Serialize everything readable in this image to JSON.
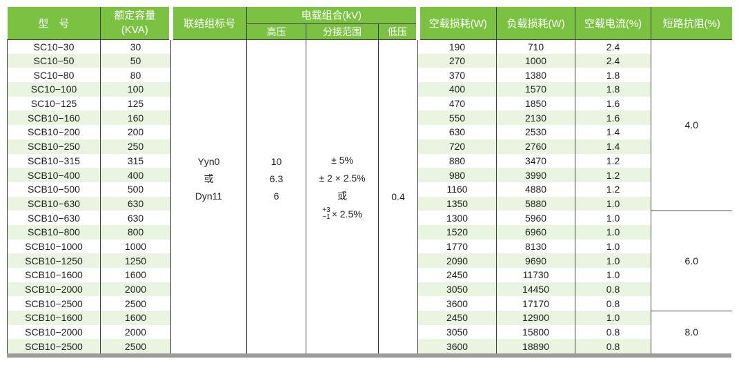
{
  "table": {
    "headers": {
      "model": "型　号",
      "capacity_line1": "额定容量",
      "capacity_line2": "(KVA)",
      "connection": "联结组标号",
      "voltage_group": "电载组合(kV)",
      "hv": "高压",
      "tap_range": "分接范围",
      "lv": "低压",
      "no_load_loss": "空载损耗(W)",
      "load_loss": "负载损耗(W)",
      "no_load_current": "空载电流(%)",
      "impedance": "短路抗阻(%)"
    },
    "merged": {
      "connection_lines": [
        "Yyn0",
        "或",
        "Dyn11"
      ],
      "hv_lines": [
        "10",
        "6.3",
        "6"
      ],
      "tap_lines": [
        "± 5%",
        "± 2 × 2.5%",
        "或"
      ],
      "tap_stacked": {
        "top": "+3",
        "bottom": "−1",
        "suffix": "× 2.5%"
      },
      "lv": "0.4"
    },
    "impedance_sections": [
      {
        "value": "4.0",
        "row_span": 12
      },
      {
        "value": "6.0",
        "row_span": 7
      },
      {
        "value": "8.0",
        "row_span": 3
      }
    ],
    "rows": [
      {
        "model": "SC10−30",
        "capacity": "30",
        "no_load_loss": "190",
        "load_loss": "710",
        "no_load_current": "2.4"
      },
      {
        "model": "SC10−50",
        "capacity": "50",
        "no_load_loss": "270",
        "load_loss": "1000",
        "no_load_current": "2.4"
      },
      {
        "model": "SC10−80",
        "capacity": "80",
        "no_load_loss": "370",
        "load_loss": "1380",
        "no_load_current": "1.8"
      },
      {
        "model": "SC10−100",
        "capacity": "100",
        "no_load_loss": "400",
        "load_loss": "1570",
        "no_load_current": "1.8"
      },
      {
        "model": "SC10−125",
        "capacity": "125",
        "no_load_loss": "470",
        "load_loss": "1850",
        "no_load_current": "1.6"
      },
      {
        "model": "SCB10−160",
        "capacity": "160",
        "no_load_loss": "550",
        "load_loss": "2130",
        "no_load_current": "1.6"
      },
      {
        "model": "SCB10−200",
        "capacity": "200",
        "no_load_loss": "630",
        "load_loss": "2530",
        "no_load_current": "1.4"
      },
      {
        "model": "SCB10−250",
        "capacity": "250",
        "no_load_loss": "720",
        "load_loss": "2760",
        "no_load_current": "1.4"
      },
      {
        "model": "SCB10−315",
        "capacity": "315",
        "no_load_loss": "880",
        "load_loss": "3470",
        "no_load_current": "1.2"
      },
      {
        "model": "SCB10−400",
        "capacity": "400",
        "no_load_loss": "980",
        "load_loss": "3990",
        "no_load_current": "1.2"
      },
      {
        "model": "SCB10−500",
        "capacity": "500",
        "no_load_loss": "1160",
        "load_loss": "4880",
        "no_load_current": "1.2"
      },
      {
        "model": "SCB10−630",
        "capacity": "630",
        "no_load_loss": "1350",
        "load_loss": "5880",
        "no_load_current": "1.0"
      },
      {
        "model": "SCB10−630",
        "capacity": "630",
        "no_load_loss": "1300",
        "load_loss": "5960",
        "no_load_current": "1.0"
      },
      {
        "model": "SCB10−800",
        "capacity": "800",
        "no_load_loss": "1520",
        "load_loss": "6960",
        "no_load_current": "1.0"
      },
      {
        "model": "SCB10−1000",
        "capacity": "1000",
        "no_load_loss": "1770",
        "load_loss": "8130",
        "no_load_current": "1.0"
      },
      {
        "model": "SCB10−1250",
        "capacity": "1250",
        "no_load_loss": "2090",
        "load_loss": "9690",
        "no_load_current": "1.0"
      },
      {
        "model": "SCB10−1600",
        "capacity": "1600",
        "no_load_loss": "2450",
        "load_loss": "11730",
        "no_load_current": "1.0"
      },
      {
        "model": "SCB10−2000",
        "capacity": "2000",
        "no_load_loss": "3050",
        "load_loss": "14450",
        "no_load_current": "0.8"
      },
      {
        "model": "SCB10−2500",
        "capacity": "2500",
        "no_load_loss": "3600",
        "load_loss": "17170",
        "no_load_current": "0.8"
      },
      {
        "model": "SCB10−1600",
        "capacity": "1600",
        "no_load_loss": "2450",
        "load_loss": "12900",
        "no_load_current": "1.0"
      },
      {
        "model": "SCB10−2000",
        "capacity": "2000",
        "no_load_loss": "3050",
        "load_loss": "15800",
        "no_load_current": "0.8"
      },
      {
        "model": "SCB10−2500",
        "capacity": "2500",
        "no_load_loss": "3600",
        "load_loss": "18890",
        "no_load_current": "0.8"
      }
    ],
    "colors": {
      "header_bg": "#7cc242",
      "stripe_bg": "#e9f4e1",
      "border": "#3d3d3d",
      "bottom_bar": "#9b9b9b",
      "header_text": "#ffffff",
      "body_text": "#1f1f1f"
    }
  }
}
